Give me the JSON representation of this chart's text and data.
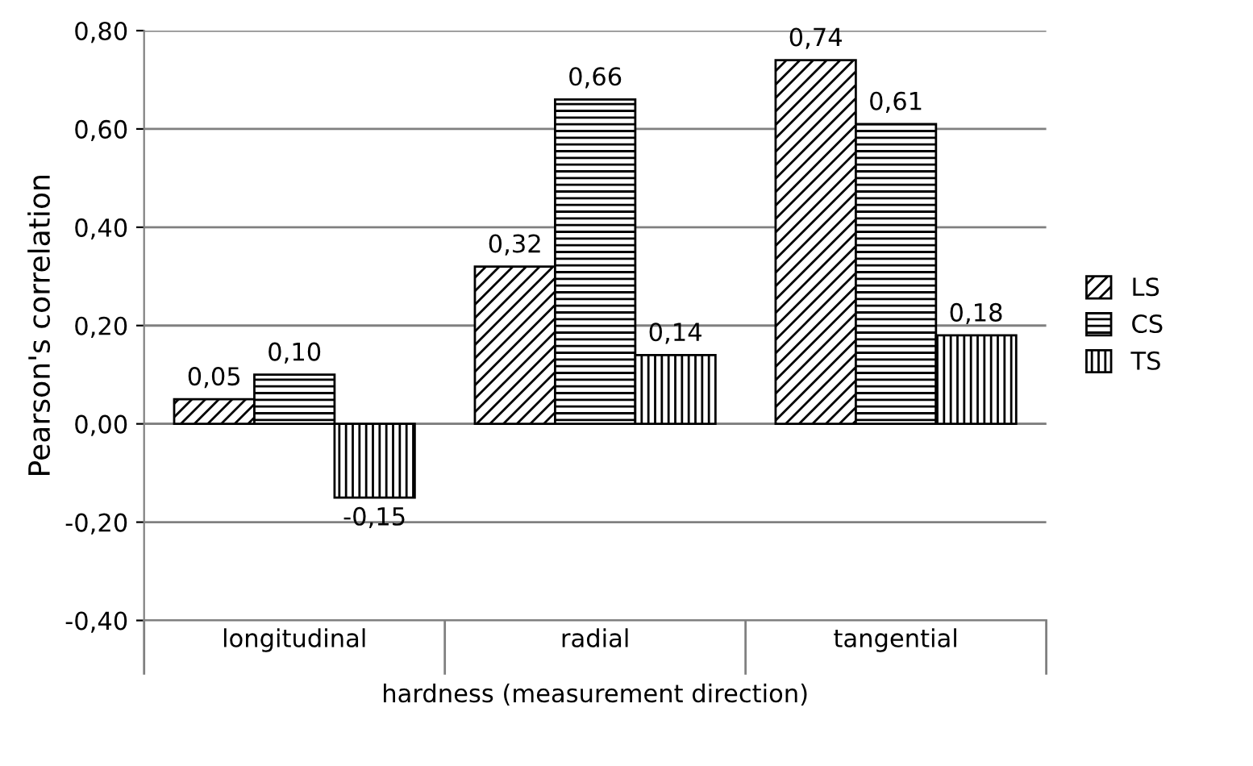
{
  "chart_data": {
    "type": "bar",
    "xlabel": "hardness (measurement direction)",
    "ylabel": "Pearson's correlation",
    "categories": [
      "longitudinal",
      "radial",
      "tangential"
    ],
    "series": [
      {
        "name": "LS",
        "color": "#000000",
        "values": [
          0.05,
          0.32,
          0.74
        ],
        "value_labels": [
          "0,05",
          "0,32",
          "0,74"
        ]
      },
      {
        "name": "CS",
        "color": "#000000",
        "values": [
          0.1,
          0.66,
          0.61
        ],
        "value_labels": [
          "0,10",
          "0,66",
          "0,61"
        ]
      },
      {
        "name": "TS",
        "color": "#000000",
        "values": [
          -0.15,
          0.14,
          0.18
        ],
        "value_labels": [
          "-0,15",
          "0,14",
          "0,18"
        ]
      }
    ],
    "ylim": [
      -0.4,
      0.8
    ],
    "yticks": [
      {
        "value": -0.4,
        "label": "-0,40"
      },
      {
        "value": -0.2,
        "label": "-0,20"
      },
      {
        "value": 0,
        "label": "0,00"
      },
      {
        "value": 0.2,
        "label": "0,20"
      },
      {
        "value": 0.4,
        "label": "0,40"
      },
      {
        "value": 0.6,
        "label": "0,60"
      },
      {
        "value": 0.8,
        "label": "0,80"
      }
    ],
    "grid": "y",
    "legend": "right"
  }
}
